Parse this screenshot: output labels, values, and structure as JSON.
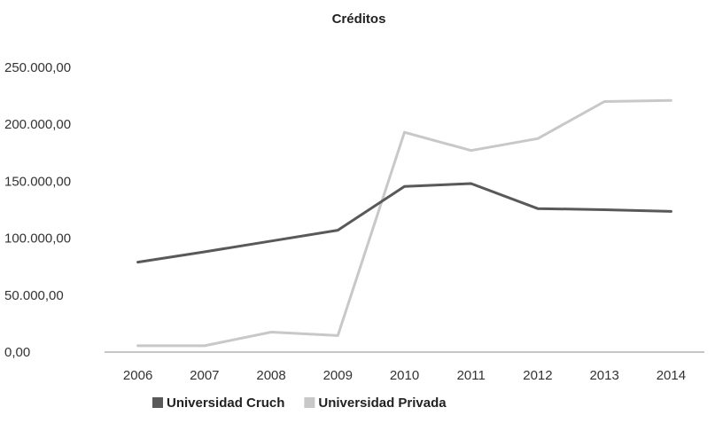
{
  "chart_data": {
    "type": "line",
    "title": "Créditos",
    "xlabel": "",
    "ylabel": "",
    "categories": [
      "2006",
      "2007",
      "2008",
      "2009",
      "2010",
      "2011",
      "2012",
      "2013",
      "2014"
    ],
    "ylim": [
      0,
      250000
    ],
    "yticks": [
      0,
      50000,
      100000,
      150000,
      200000,
      250000
    ],
    "ytick_labels": [
      "0,00",
      "50.000,00",
      "100.000,00",
      "150.000,00",
      "200.000,00",
      "250.000,00"
    ],
    "grid": false,
    "legend_position": "bottom",
    "series": [
      {
        "name": "Universidad Cruch",
        "color": "#595959",
        "values": [
          79000,
          88000,
          97500,
          107000,
          145500,
          148000,
          126000,
          125000,
          123500
        ]
      },
      {
        "name": "Universidad Privada",
        "color": "#c8c8c8",
        "values": [
          5500,
          5500,
          17500,
          14500,
          193000,
          177000,
          187500,
          220000,
          221000
        ]
      }
    ]
  }
}
